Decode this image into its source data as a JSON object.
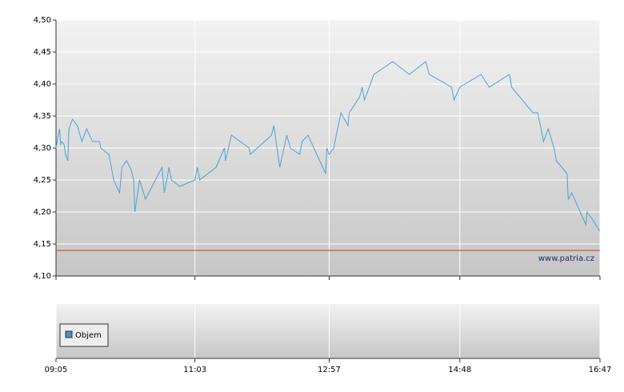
{
  "chart_data": {
    "type": "line",
    "x": [
      545,
      547,
      548,
      549,
      550,
      552,
      553,
      555,
      556,
      559,
      563,
      567,
      571,
      576,
      582,
      583,
      590,
      594,
      599,
      601,
      605,
      609,
      611,
      612,
      616,
      621,
      635,
      637,
      641,
      643,
      650,
      663,
      665,
      667,
      681,
      688,
      689,
      694,
      709,
      710,
      728,
      730,
      735,
      741,
      744,
      752,
      754,
      759,
      769,
      774,
      775,
      777,
      781,
      783,
      787,
      793,
      794,
      803,
      805,
      807,
      815,
      831,
      845,
      859,
      862,
      881,
      883,
      888,
      906,
      913,
      930,
      932,
      950,
      954,
      957,
      959,
      963,
      968,
      970,
      979,
      980,
      983,
      995,
      996,
      1000,
      1007
    ],
    "values": [
      4.3,
      4.32,
      4.33,
      4.305,
      4.31,
      4.305,
      4.29,
      4.28,
      4.33,
      4.345,
      4.335,
      4.31,
      4.33,
      4.31,
      4.31,
      4.3,
      4.29,
      4.25,
      4.23,
      4.27,
      4.28,
      4.265,
      4.25,
      4.2,
      4.25,
      4.22,
      4.27,
      4.23,
      4.27,
      4.25,
      4.24,
      4.25,
      4.27,
      4.25,
      4.27,
      4.3,
      4.28,
      4.32,
      4.3,
      4.29,
      4.32,
      4.335,
      4.27,
      4.32,
      4.3,
      4.29,
      4.31,
      4.32,
      4.28,
      4.26,
      4.3,
      4.29,
      4.3,
      4.32,
      4.355,
      4.335,
      4.355,
      4.38,
      4.395,
      4.375,
      4.415,
      4.435,
      4.415,
      4.435,
      4.415,
      4.395,
      4.375,
      4.395,
      4.415,
      4.395,
      4.415,
      4.395,
      4.355,
      4.355,
      4.33,
      4.31,
      4.33,
      4.3,
      4.28,
      4.26,
      4.22,
      4.23,
      4.18,
      4.2,
      4.19,
      4.17
    ],
    "color": "#4ba3d3",
    "ylim": [
      4.1,
      4.5
    ],
    "yticks": [
      {
        "value": 4.1,
        "label": "4,10"
      },
      {
        "value": 4.15,
        "label": "4,15"
      },
      {
        "value": 4.2,
        "label": "4,20"
      },
      {
        "value": 4.25,
        "label": "4,25"
      },
      {
        "value": 4.3,
        "label": "4,30"
      },
      {
        "value": 4.35,
        "label": "4,35"
      },
      {
        "value": 4.4,
        "label": "4,40"
      },
      {
        "value": 4.45,
        "label": "4,45"
      },
      {
        "value": 4.5,
        "label": "4,50"
      }
    ],
    "xlim": [
      545,
      1007
    ],
    "xticks": [
      {
        "value": 545,
        "label": "09:05"
      },
      {
        "value": 663,
        "label": "11:03"
      },
      {
        "value": 777,
        "label": "12:57"
      },
      {
        "value": 888,
        "label": "14:48"
      },
      {
        "value": 1007,
        "label": "16:47"
      }
    ],
    "reference_line": {
      "value": 4.14,
      "color": "#d83030"
    },
    "watermark": "www.patria.cz",
    "grid": true,
    "volume_legend": {
      "name": "Objem",
      "color": "#4a90c8"
    }
  }
}
